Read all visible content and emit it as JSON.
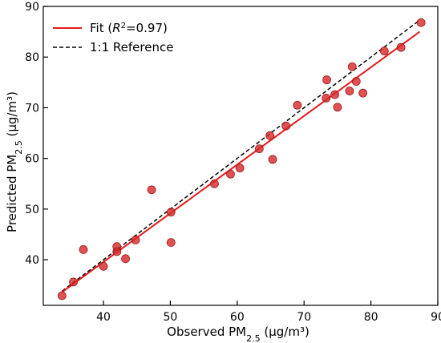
{
  "chart_data": {
    "type": "scatter",
    "xlabel": {
      "base": "Observed PM",
      "sub": "2.5",
      "unit": " (μg/m³)"
    },
    "ylabel": {
      "base": "Predicted PM",
      "sub": "2.5",
      "unit": " (μg/m³)"
    },
    "xlim": [
      31,
      90
    ],
    "ylim": [
      31,
      90
    ],
    "xticks": [
      40,
      50,
      60,
      70,
      80,
      90
    ],
    "yticks": [
      40,
      50,
      60,
      70,
      80,
      90
    ],
    "grid": false,
    "legend_position": "top-left",
    "legend": {
      "fit_prefix": "Fit (",
      "fit_var": "R",
      "fit_sup": "2",
      "fit_value": "=0.97)",
      "reference": "1:1 Reference"
    },
    "colors": {
      "points": "#d62728",
      "fit": "#e31a1c",
      "reference": "#000000"
    },
    "points": [
      {
        "x": 33.8,
        "y": 32.9
      },
      {
        "x": 35.5,
        "y": 35.6
      },
      {
        "x": 37.0,
        "y": 42.0
      },
      {
        "x": 40.0,
        "y": 38.7
      },
      {
        "x": 42.0,
        "y": 42.6
      },
      {
        "x": 42.0,
        "y": 41.6
      },
      {
        "x": 43.3,
        "y": 40.2
      },
      {
        "x": 44.8,
        "y": 43.9
      },
      {
        "x": 47.2,
        "y": 53.8
      },
      {
        "x": 50.1,
        "y": 49.4
      },
      {
        "x": 50.1,
        "y": 43.4
      },
      {
        "x": 56.6,
        "y": 55.0
      },
      {
        "x": 59.0,
        "y": 56.9
      },
      {
        "x": 60.4,
        "y": 58.1
      },
      {
        "x": 63.3,
        "y": 61.9
      },
      {
        "x": 64.9,
        "y": 64.5
      },
      {
        "x": 65.3,
        "y": 59.8
      },
      {
        "x": 67.3,
        "y": 66.4
      },
      {
        "x": 69.0,
        "y": 70.5
      },
      {
        "x": 73.3,
        "y": 71.9
      },
      {
        "x": 73.4,
        "y": 75.5
      },
      {
        "x": 74.6,
        "y": 72.6
      },
      {
        "x": 75.0,
        "y": 70.1
      },
      {
        "x": 76.8,
        "y": 73.3
      },
      {
        "x": 77.2,
        "y": 78.1
      },
      {
        "x": 77.8,
        "y": 75.2
      },
      {
        "x": 78.8,
        "y": 72.9
      },
      {
        "x": 82.0,
        "y": 81.2
      },
      {
        "x": 84.5,
        "y": 81.9
      },
      {
        "x": 87.5,
        "y": 86.8
      }
    ],
    "fit_line": [
      {
        "x": 33.8,
        "y": 33.6
      },
      {
        "x": 87.3,
        "y": 85.0
      }
    ],
    "reference_line": [
      {
        "x": 33.8,
        "y": 33.8
      },
      {
        "x": 87.3,
        "y": 87.3
      }
    ]
  }
}
